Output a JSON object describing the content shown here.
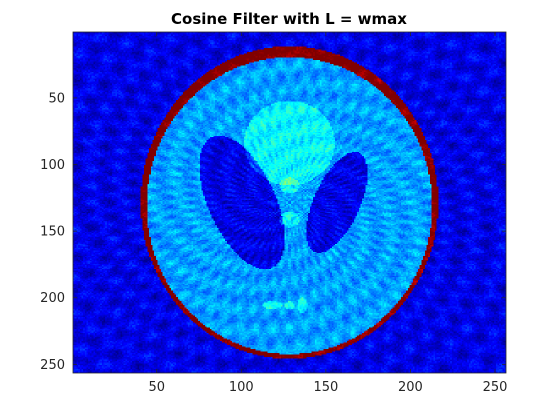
{
  "chart_data": {
    "type": "heatmap",
    "title": "Cosine Filter with L = wmax",
    "xlabel": "",
    "ylabel": "",
    "xlim": [
      0.5,
      256.5
    ],
    "ylim": [
      0.5,
      256.5
    ],
    "y_reversed": true,
    "x_ticks": [
      50,
      100,
      150,
      200,
      250
    ],
    "y_ticks": [
      50,
      100,
      150,
      200,
      250
    ],
    "grid": false,
    "colormap": "jet",
    "image": "Shepp-Logan phantom reconstruction (filtered back-projection, cosine filter)",
    "phantom": {
      "size": 256,
      "ellipses": [
        {
          "intensity": 1.0,
          "a": 0.69,
          "b": 0.92,
          "x0": 0.0,
          "y0": 0.0,
          "phi": 0
        },
        {
          "intensity": -0.8,
          "a": 0.6624,
          "b": 0.874,
          "x0": 0.0,
          "y0": -0.0184,
          "phi": 0
        },
        {
          "intensity": -0.2,
          "a": 0.11,
          "b": 0.31,
          "x0": 0.22,
          "y0": 0.0,
          "phi": -18
        },
        {
          "intensity": -0.2,
          "a": 0.16,
          "b": 0.41,
          "x0": -0.22,
          "y0": 0.0,
          "phi": 18
        },
        {
          "intensity": 0.1,
          "a": 0.21,
          "b": 0.25,
          "x0": 0.0,
          "y0": 0.35,
          "phi": 0
        },
        {
          "intensity": 0.1,
          "a": 0.046,
          "b": 0.046,
          "x0": 0.0,
          "y0": 0.1,
          "phi": 0
        },
        {
          "intensity": 0.1,
          "a": 0.046,
          "b": 0.046,
          "x0": 0.0,
          "y0": -0.1,
          "phi": 0
        },
        {
          "intensity": 0.1,
          "a": 0.046,
          "b": 0.023,
          "x0": -0.08,
          "y0": -0.605,
          "phi": 0
        },
        {
          "intensity": 0.1,
          "a": 0.023,
          "b": 0.023,
          "x0": 0.0,
          "y0": -0.606,
          "phi": 0
        },
        {
          "intensity": 0.1,
          "a": 0.023,
          "b": 0.046,
          "x0": 0.06,
          "y0": -0.605,
          "phi": 0
        }
      ]
    },
    "colors": {
      "axis": "#262626",
      "background": "#ffffff"
    }
  }
}
